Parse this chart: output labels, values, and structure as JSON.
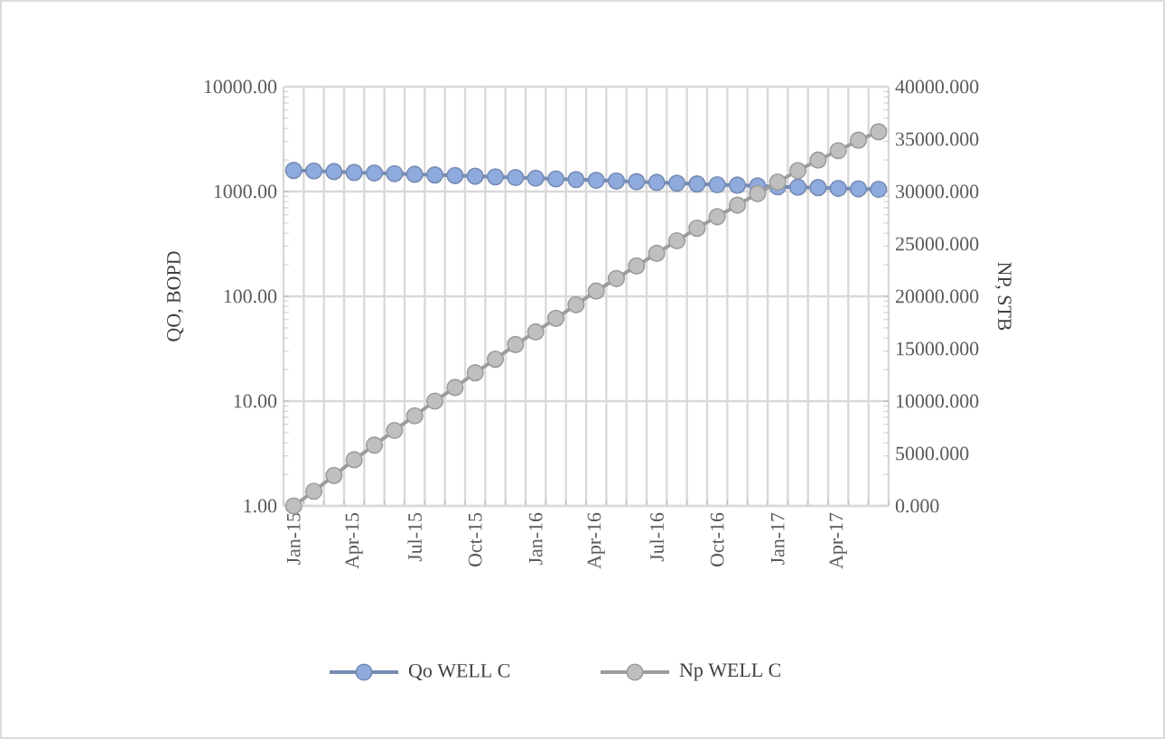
{
  "chart_data": {
    "type": "line",
    "categories": [
      "Jan-15",
      null,
      null,
      "Apr-15",
      null,
      null,
      "Jul-15",
      null,
      null,
      "Oct-15",
      null,
      null,
      "Jan-16",
      null,
      null,
      "Apr-16",
      null,
      null,
      "Jul-16",
      null,
      null,
      "Oct-16",
      null,
      null,
      "Jan-17",
      null,
      null,
      "Apr-17",
      null,
      null
    ],
    "series": [
      {
        "name": "Qo WELL C",
        "color": "#8faadc",
        "values": [
          1590,
          1570,
          1550,
          1520,
          1500,
          1480,
          1460,
          1440,
          1420,
          1400,
          1380,
          1360,
          1340,
          1320,
          1300,
          1280,
          1260,
          1240,
          1220,
          1200,
          1180,
          1160,
          1150,
          1130,
          1110,
          1100,
          1090,
          1070,
          1060,
          1050
        ]
      },
      {
        "name": "Np WELL C",
        "color": "#bfbfbf",
        "axis": "y2",
        "values": [
          0,
          1400,
          2900,
          4400,
          5800,
          7200,
          8600,
          10000,
          11300,
          12700,
          14000,
          15400,
          16600,
          17900,
          19200,
          20500,
          21700,
          22900,
          24100,
          25300,
          26500,
          27600,
          28700,
          29800,
          30900,
          32000,
          33000,
          33900,
          34900,
          35700
        ]
      }
    ],
    "ylabel": "QO, BOPD",
    "y2label": "NP, STB",
    "log": "y",
    "ylim": [
      1,
      10000
    ],
    "yticks": [
      {
        "value": 1,
        "label": "1.00"
      },
      {
        "value": 10,
        "label": "10.00"
      },
      {
        "value": 100,
        "label": "100.00"
      },
      {
        "value": 1000,
        "label": "1000.00"
      },
      {
        "value": 10000,
        "label": "10000.00"
      }
    ],
    "y2lim": [
      0,
      40000
    ],
    "y2ticks": [
      {
        "value": 0,
        "label": "0.000"
      },
      {
        "value": 5000,
        "label": "5000.000"
      },
      {
        "value": 10000,
        "label": "10000.000"
      },
      {
        "value": 15000,
        "label": "15000.000"
      },
      {
        "value": 20000,
        "label": "20000.000"
      },
      {
        "value": 25000,
        "label": "25000.000"
      },
      {
        "value": 30000,
        "label": "30000.000"
      },
      {
        "value": 35000,
        "label": "35000.000"
      },
      {
        "value": 40000,
        "label": "40000.000"
      }
    ],
    "grid": true,
    "legend": "bottom",
    "marker": "circle",
    "line_style": "solid"
  }
}
